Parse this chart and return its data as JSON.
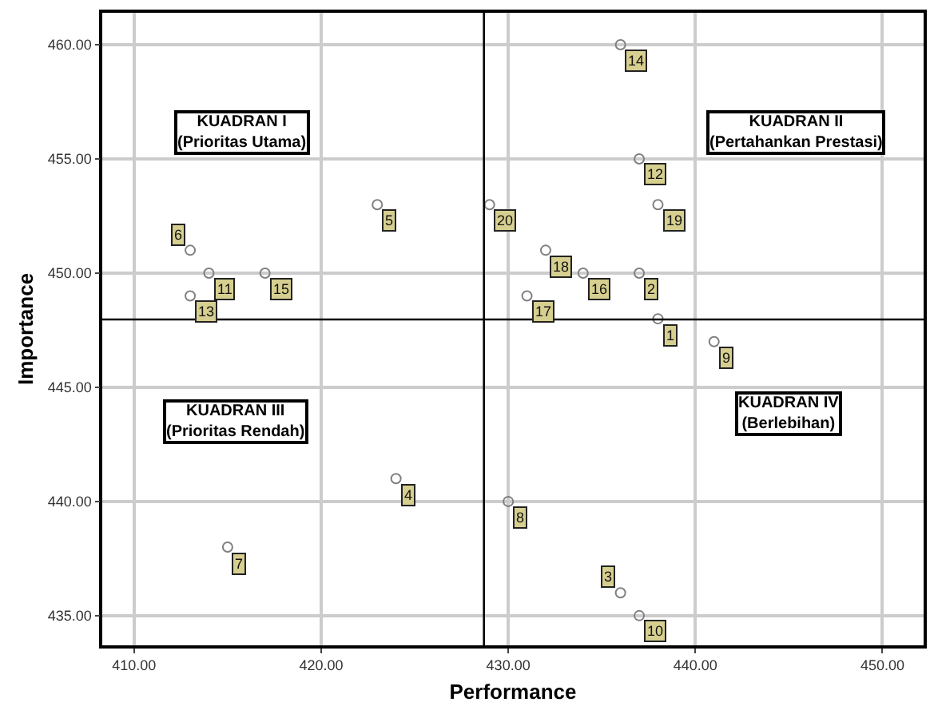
{
  "chart_data": {
    "type": "scatter",
    "xlabel": "Performance",
    "ylabel": "Importance",
    "x": [
      436,
      437,
      423,
      429,
      438,
      413,
      414,
      417,
      413,
      432,
      434,
      437,
      431,
      438,
      441,
      424,
      430,
      415,
      436,
      437
    ],
    "series": [
      {
        "color": "#808080",
        "values": [
          460,
          455,
          453,
          453,
          453,
          451,
          450,
          450,
          449,
          451,
          450,
          450,
          449,
          448,
          447,
          441,
          440,
          438,
          436,
          435
        ]
      }
    ],
    "xlim": [
      408.3,
      452.2
    ],
    "ylim": [
      433.7,
      461.4
    ],
    "xticks": [
      {
        "value": 410,
        "label": "410.00"
      },
      {
        "value": 420,
        "label": "420.00"
      },
      {
        "value": 430,
        "label": "430.00"
      },
      {
        "value": 440,
        "label": "440.00"
      },
      {
        "value": 450,
        "label": "450.00"
      }
    ],
    "yticks": [
      {
        "value": 435,
        "label": "435.00"
      },
      {
        "value": 440,
        "label": "440.00"
      },
      {
        "value": 445,
        "label": "445.00"
      },
      {
        "value": 450,
        "label": "450.00"
      },
      {
        "value": 455,
        "label": "455.00"
      },
      {
        "value": 460,
        "label": "460.00"
      }
    ],
    "ref_lines": [
      {
        "axis": "x",
        "value": 428.7,
        "color": "#000000"
      },
      {
        "axis": "y",
        "value": 447.97,
        "color": "#000000"
      }
    ],
    "annotations": [
      "KUADRAN I\n(Prioritas Utama)",
      "KUADRAN II\n(Pertahankan Prestasi)",
      "KUADRAN III\n(Prioritas Rendah)",
      "KUADRAN IV\n(Berlebihan)",
      {
        "text": "14",
        "x": 436,
        "y": 460
      },
      {
        "text": "12",
        "x": 437,
        "y": 455
      },
      {
        "text": "5",
        "x": 423,
        "y": 453
      },
      {
        "text": "20",
        "x": 429,
        "y": 453
      },
      {
        "text": "19",
        "x": 438,
        "y": 453
      },
      {
        "text": "6",
        "x": 413,
        "y": 451
      },
      {
        "text": "11",
        "x": 414,
        "y": 450
      },
      {
        "text": "15",
        "x": 417,
        "y": 450
      },
      {
        "text": "13",
        "x": 413,
        "y": 449
      },
      {
        "text": "18",
        "x": 432,
        "y": 451
      },
      {
        "text": "16",
        "x": 434,
        "y": 450
      },
      {
        "text": "2",
        "x": 437,
        "y": 450
      },
      {
        "text": "17",
        "x": 431,
        "y": 449
      },
      {
        "text": "1",
        "x": 438,
        "y": 448
      },
      {
        "text": "9",
        "x": 441,
        "y": 447
      },
      {
        "text": "4",
        "x": 424,
        "y": 441
      },
      {
        "text": "8",
        "x": 430,
        "y": 440
      },
      {
        "text": "7",
        "x": 415,
        "y": 438
      },
      {
        "text": "3",
        "x": 436,
        "y": 436
      },
      {
        "text": "10",
        "x": 437,
        "y": 435
      }
    ],
    "grid": true,
    "marker": "circle"
  }
}
